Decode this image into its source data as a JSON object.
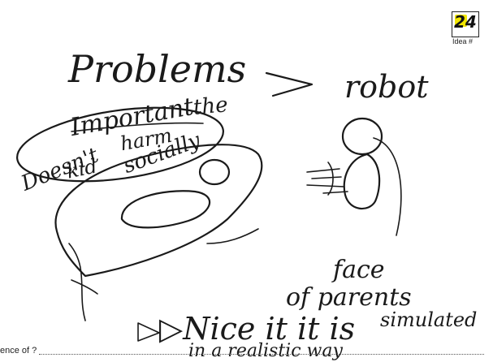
{
  "badge": {
    "number": "24",
    "label": "Idea #"
  },
  "sketch": {
    "problems": "Problems",
    "arrow": ">",
    "robot": "robot",
    "bubble_word1": "Important",
    "bubble_word2": "the",
    "bubble_line2a": "Doesn't",
    "bubble_line2b": "harm",
    "bubble_line3a": "kid",
    "bubble_line3b": "socially",
    "face_word1": "face",
    "face_word2": "of parents",
    "face_word3": "simulated",
    "nice_line": "▷Nice it it is",
    "realistic_line": "in a realistic way"
  },
  "footer": {
    "prompt": "ence of ?"
  }
}
